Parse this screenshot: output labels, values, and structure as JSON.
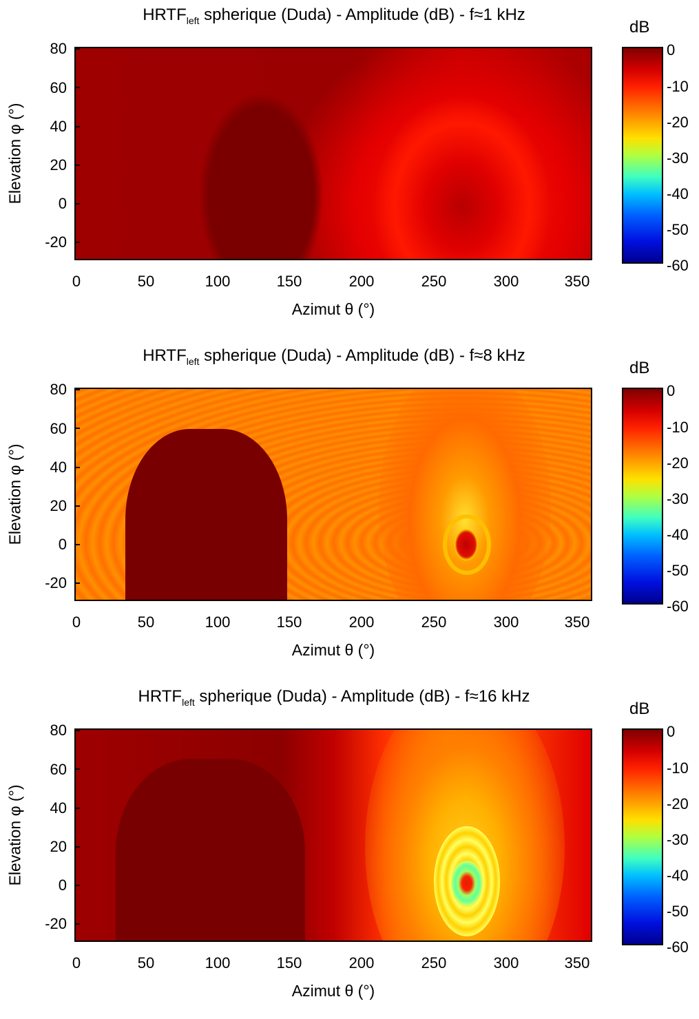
{
  "colorbar": {
    "unit": "dB",
    "ticks": [
      "0",
      "-10",
      "-20",
      "-30",
      "-40",
      "-50",
      "-60"
    ]
  },
  "chart_data": [
    {
      "type": "heatmap",
      "title_main": "HRTF",
      "title_sub": "left",
      "title_rest": " spherique (Duda) - Amplitude (dB) - f≈1 kHz",
      "xlabel": "Azimut θ (°)",
      "ylabel": "Elevation φ (°)",
      "xlim": [
        0,
        360
      ],
      "ylim": [
        -30,
        80
      ],
      "xticks": [
        "0",
        "50",
        "100",
        "150",
        "200",
        "250",
        "300",
        "350"
      ],
      "yticks": [
        "80",
        "60",
        "40",
        "20",
        "0",
        "-20"
      ],
      "clim": [
        -60,
        0
      ],
      "min_db_at_ipsi": -1,
      "min_db_at_contra": -9,
      "contra_center": [
        270,
        0
      ]
    },
    {
      "type": "heatmap",
      "title_main": "HRTF",
      "title_sub": "left",
      "title_rest": " spherique (Duda) - Amplitude (dB) - f≈8 kHz",
      "xlabel": "Azimut θ (°)",
      "ylabel": "Elevation φ (°)",
      "xlim": [
        0,
        360
      ],
      "ylim": [
        -30,
        80
      ],
      "xticks": [
        "0",
        "50",
        "100",
        "150",
        "200",
        "250",
        "300",
        "350"
      ],
      "yticks": [
        "80",
        "60",
        "40",
        "20",
        "0",
        "-20"
      ],
      "clim": [
        -60,
        0
      ],
      "min_db_at_ipsi": -1,
      "min_db_at_contra": -22,
      "contra_center": [
        270,
        0
      ]
    },
    {
      "type": "heatmap",
      "title_main": "HRTF",
      "title_sub": "left",
      "title_rest": " spherique (Duda) - Amplitude (dB) - f≈16 kHz",
      "xlabel": "Azimut θ (°)",
      "ylabel": "Elevation φ (°)",
      "xlim": [
        0,
        360
      ],
      "ylim": [
        -30,
        80
      ],
      "xticks": [
        "0",
        "50",
        "100",
        "150",
        "200",
        "250",
        "300",
        "350"
      ],
      "yticks": [
        "80",
        "60",
        "40",
        "20",
        "0",
        "-20"
      ],
      "clim": [
        -60,
        0
      ],
      "min_db_at_ipsi": -1,
      "min_db_at_contra": -30,
      "contra_center": [
        270,
        0
      ]
    }
  ]
}
